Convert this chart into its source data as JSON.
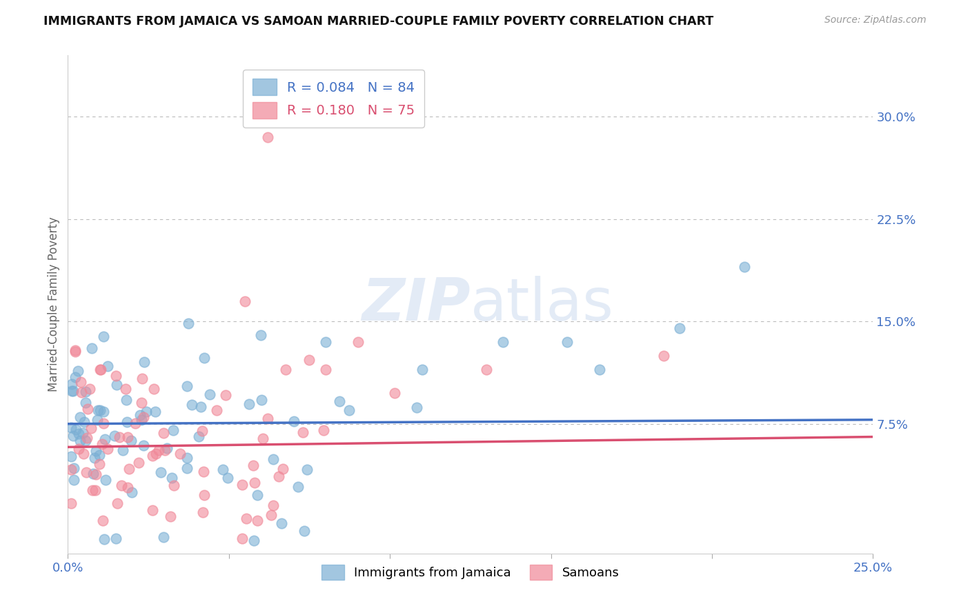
{
  "title": "IMMIGRANTS FROM JAMAICA VS SAMOAN MARRIED-COUPLE FAMILY POVERTY CORRELATION CHART",
  "source": "Source: ZipAtlas.com",
  "ylabel": "Married-Couple Family Poverty",
  "xlim": [
    0.0,
    0.25
  ],
  "ylim": [
    -0.02,
    0.345
  ],
  "yticks": [
    0.075,
    0.15,
    0.225,
    0.3
  ],
  "yticklabels": [
    "7.5%",
    "15.0%",
    "22.5%",
    "30.0%"
  ],
  "series1_name": "Immigrants from Jamaica",
  "series1_color": "#7bafd4",
  "series1_edge": "#7bafd4",
  "series1_R": 0.084,
  "series1_N": 84,
  "series2_name": "Samoans",
  "series2_color": "#f08898",
  "series2_edge": "#f08898",
  "series2_R": 0.18,
  "series2_N": 75,
  "grid_color": "#bbbbbb",
  "background_color": "#ffffff",
  "title_color": "#111111",
  "tick_color": "#4472c4",
  "legend_R_color1": "#4472c4",
  "legend_R_color2": "#d94f70",
  "line1_color": "#4472c4",
  "line2_color": "#d94f70",
  "watermark_color": "#c8d8ee",
  "watermark_alpha": 0.5
}
